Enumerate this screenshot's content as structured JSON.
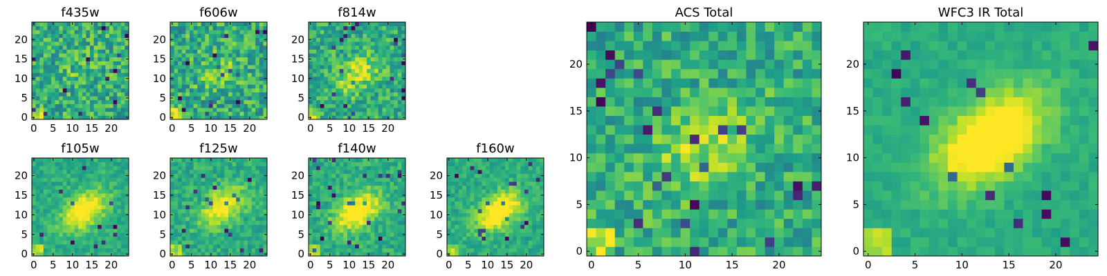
{
  "chart_data": [
    {
      "type": "heatmap",
      "title": "f435w",
      "xlim": [
        -0.5,
        24.5
      ],
      "ylim": [
        -0.5,
        24.5
      ],
      "xticks": [
        0,
        5,
        10,
        15,
        20
      ],
      "yticks": [
        0,
        5,
        10,
        15,
        20
      ],
      "grid": false,
      "legend": "none",
      "colormap": "viridis",
      "signal": {
        "peak": [
          12,
          12
        ],
        "contrast": 0.08,
        "noise": 0.22
      }
    },
    {
      "type": "heatmap",
      "title": "f606w",
      "xlim": [
        -0.5,
        24.5
      ],
      "ylim": [
        -0.5,
        24.5
      ],
      "xticks": [
        0,
        5,
        10,
        15,
        20
      ],
      "yticks": [
        0,
        5,
        10,
        15,
        20
      ],
      "grid": false,
      "legend": "none",
      "colormap": "viridis",
      "signal": {
        "peak": [
          12,
          12
        ],
        "contrast": 0.12,
        "noise": 0.22
      }
    },
    {
      "type": "heatmap",
      "title": "f814w",
      "xlim": [
        -0.5,
        24.5
      ],
      "ylim": [
        -0.5,
        24.5
      ],
      "xticks": [
        0,
        5,
        10,
        15,
        20
      ],
      "yticks": [
        0,
        5,
        10,
        15,
        20
      ],
      "grid": false,
      "legend": "none",
      "colormap": "viridis",
      "signal": {
        "peak": [
          12,
          11
        ],
        "contrast": 0.3,
        "noise": 0.18
      }
    },
    {
      "type": "heatmap",
      "title": "f105w",
      "xlim": [
        -0.5,
        24.5
      ],
      "ylim": [
        -0.5,
        24.5
      ],
      "xticks": [
        0,
        5,
        10,
        15,
        20
      ],
      "yticks": [
        0,
        5,
        10,
        15,
        20
      ],
      "grid": false,
      "legend": "none",
      "colormap": "viridis",
      "signal": {
        "peak": [
          13,
          11
        ],
        "contrast": 0.5,
        "noise": 0.1
      }
    },
    {
      "type": "heatmap",
      "title": "f125w",
      "xlim": [
        -0.5,
        24.5
      ],
      "ylim": [
        -0.5,
        24.5
      ],
      "xticks": [
        0,
        5,
        10,
        15,
        20
      ],
      "yticks": [
        0,
        5,
        10,
        15,
        20
      ],
      "grid": false,
      "legend": "none",
      "colormap": "viridis",
      "signal": {
        "peak": [
          13,
          12
        ],
        "contrast": 0.45,
        "noise": 0.12
      }
    },
    {
      "type": "heatmap",
      "title": "f140w",
      "xlim": [
        -0.5,
        24.5
      ],
      "ylim": [
        -0.5,
        24.5
      ],
      "xticks": [
        0,
        5,
        10,
        15,
        20
      ],
      "yticks": [
        0,
        5,
        10,
        15,
        20
      ],
      "grid": false,
      "legend": "none",
      "colormap": "viridis",
      "signal": {
        "peak": [
          12,
          11
        ],
        "contrast": 0.55,
        "noise": 0.12
      }
    },
    {
      "type": "heatmap",
      "title": "f160w",
      "xlim": [
        -0.5,
        24.5
      ],
      "ylim": [
        -0.5,
        24.5
      ],
      "xticks": [
        0,
        5,
        10,
        15,
        20
      ],
      "yticks": [
        0,
        5,
        10,
        15,
        20
      ],
      "grid": false,
      "legend": "none",
      "colormap": "viridis",
      "signal": {
        "peak": [
          13,
          11
        ],
        "contrast": 0.55,
        "noise": 0.1
      }
    },
    {
      "type": "heatmap",
      "title": "ACS Total",
      "xlim": [
        -0.5,
        24.5
      ],
      "ylim": [
        -0.5,
        24.5
      ],
      "xticks": [
        0,
        5,
        10,
        15,
        20
      ],
      "yticks": [
        0,
        5,
        10,
        15,
        20
      ],
      "grid": false,
      "legend": "none",
      "colormap": "viridis",
      "signal": {
        "peak": [
          12,
          11
        ],
        "contrast": 0.25,
        "noise": 0.18
      }
    },
    {
      "type": "heatmap",
      "title": "WFC3 IR Total",
      "xlim": [
        -0.5,
        24.5
      ],
      "ylim": [
        -0.5,
        24.5
      ],
      "xticks": [
        0,
        5,
        10,
        15,
        20
      ],
      "yticks": [
        0,
        5,
        10,
        15,
        20
      ],
      "grid": false,
      "legend": "none",
      "colormap": "viridis",
      "signal": {
        "peak": [
          13,
          12
        ],
        "contrast": 0.6,
        "noise": 0.06
      }
    }
  ]
}
